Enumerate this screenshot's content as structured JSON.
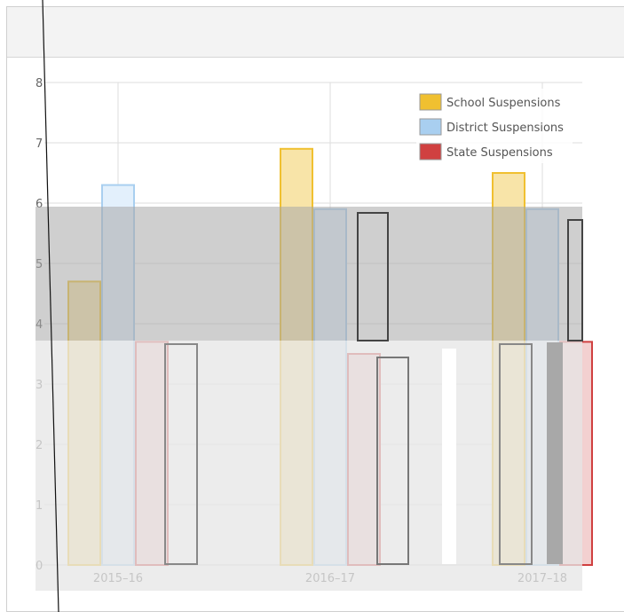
{
  "chart_data": {
    "type": "bar",
    "categories": [
      "2015–16",
      "2016–17",
      "2017–18"
    ],
    "series": [
      {
        "name": "School Suspensions",
        "values": [
          4.7,
          6.9,
          6.5
        ],
        "color": "#f0c030",
        "fill": "#f8e4a8"
      },
      {
        "name": "District Suspensions",
        "values": [
          6.3,
          5.9,
          5.9
        ],
        "color": "#a9cff0",
        "fill": "#e3f0fc"
      },
      {
        "name": "State Suspensions",
        "values": [
          3.7,
          3.5,
          3.7
        ],
        "color": "#d04040",
        "fill": "#f3d0d0"
      }
    ],
    "ylim": [
      0,
      8
    ],
    "yticks": [
      "0",
      "1",
      "2",
      "3",
      "4",
      "5",
      "6",
      "7",
      "8"
    ],
    "grid": true,
    "legend_position": "top-right"
  }
}
